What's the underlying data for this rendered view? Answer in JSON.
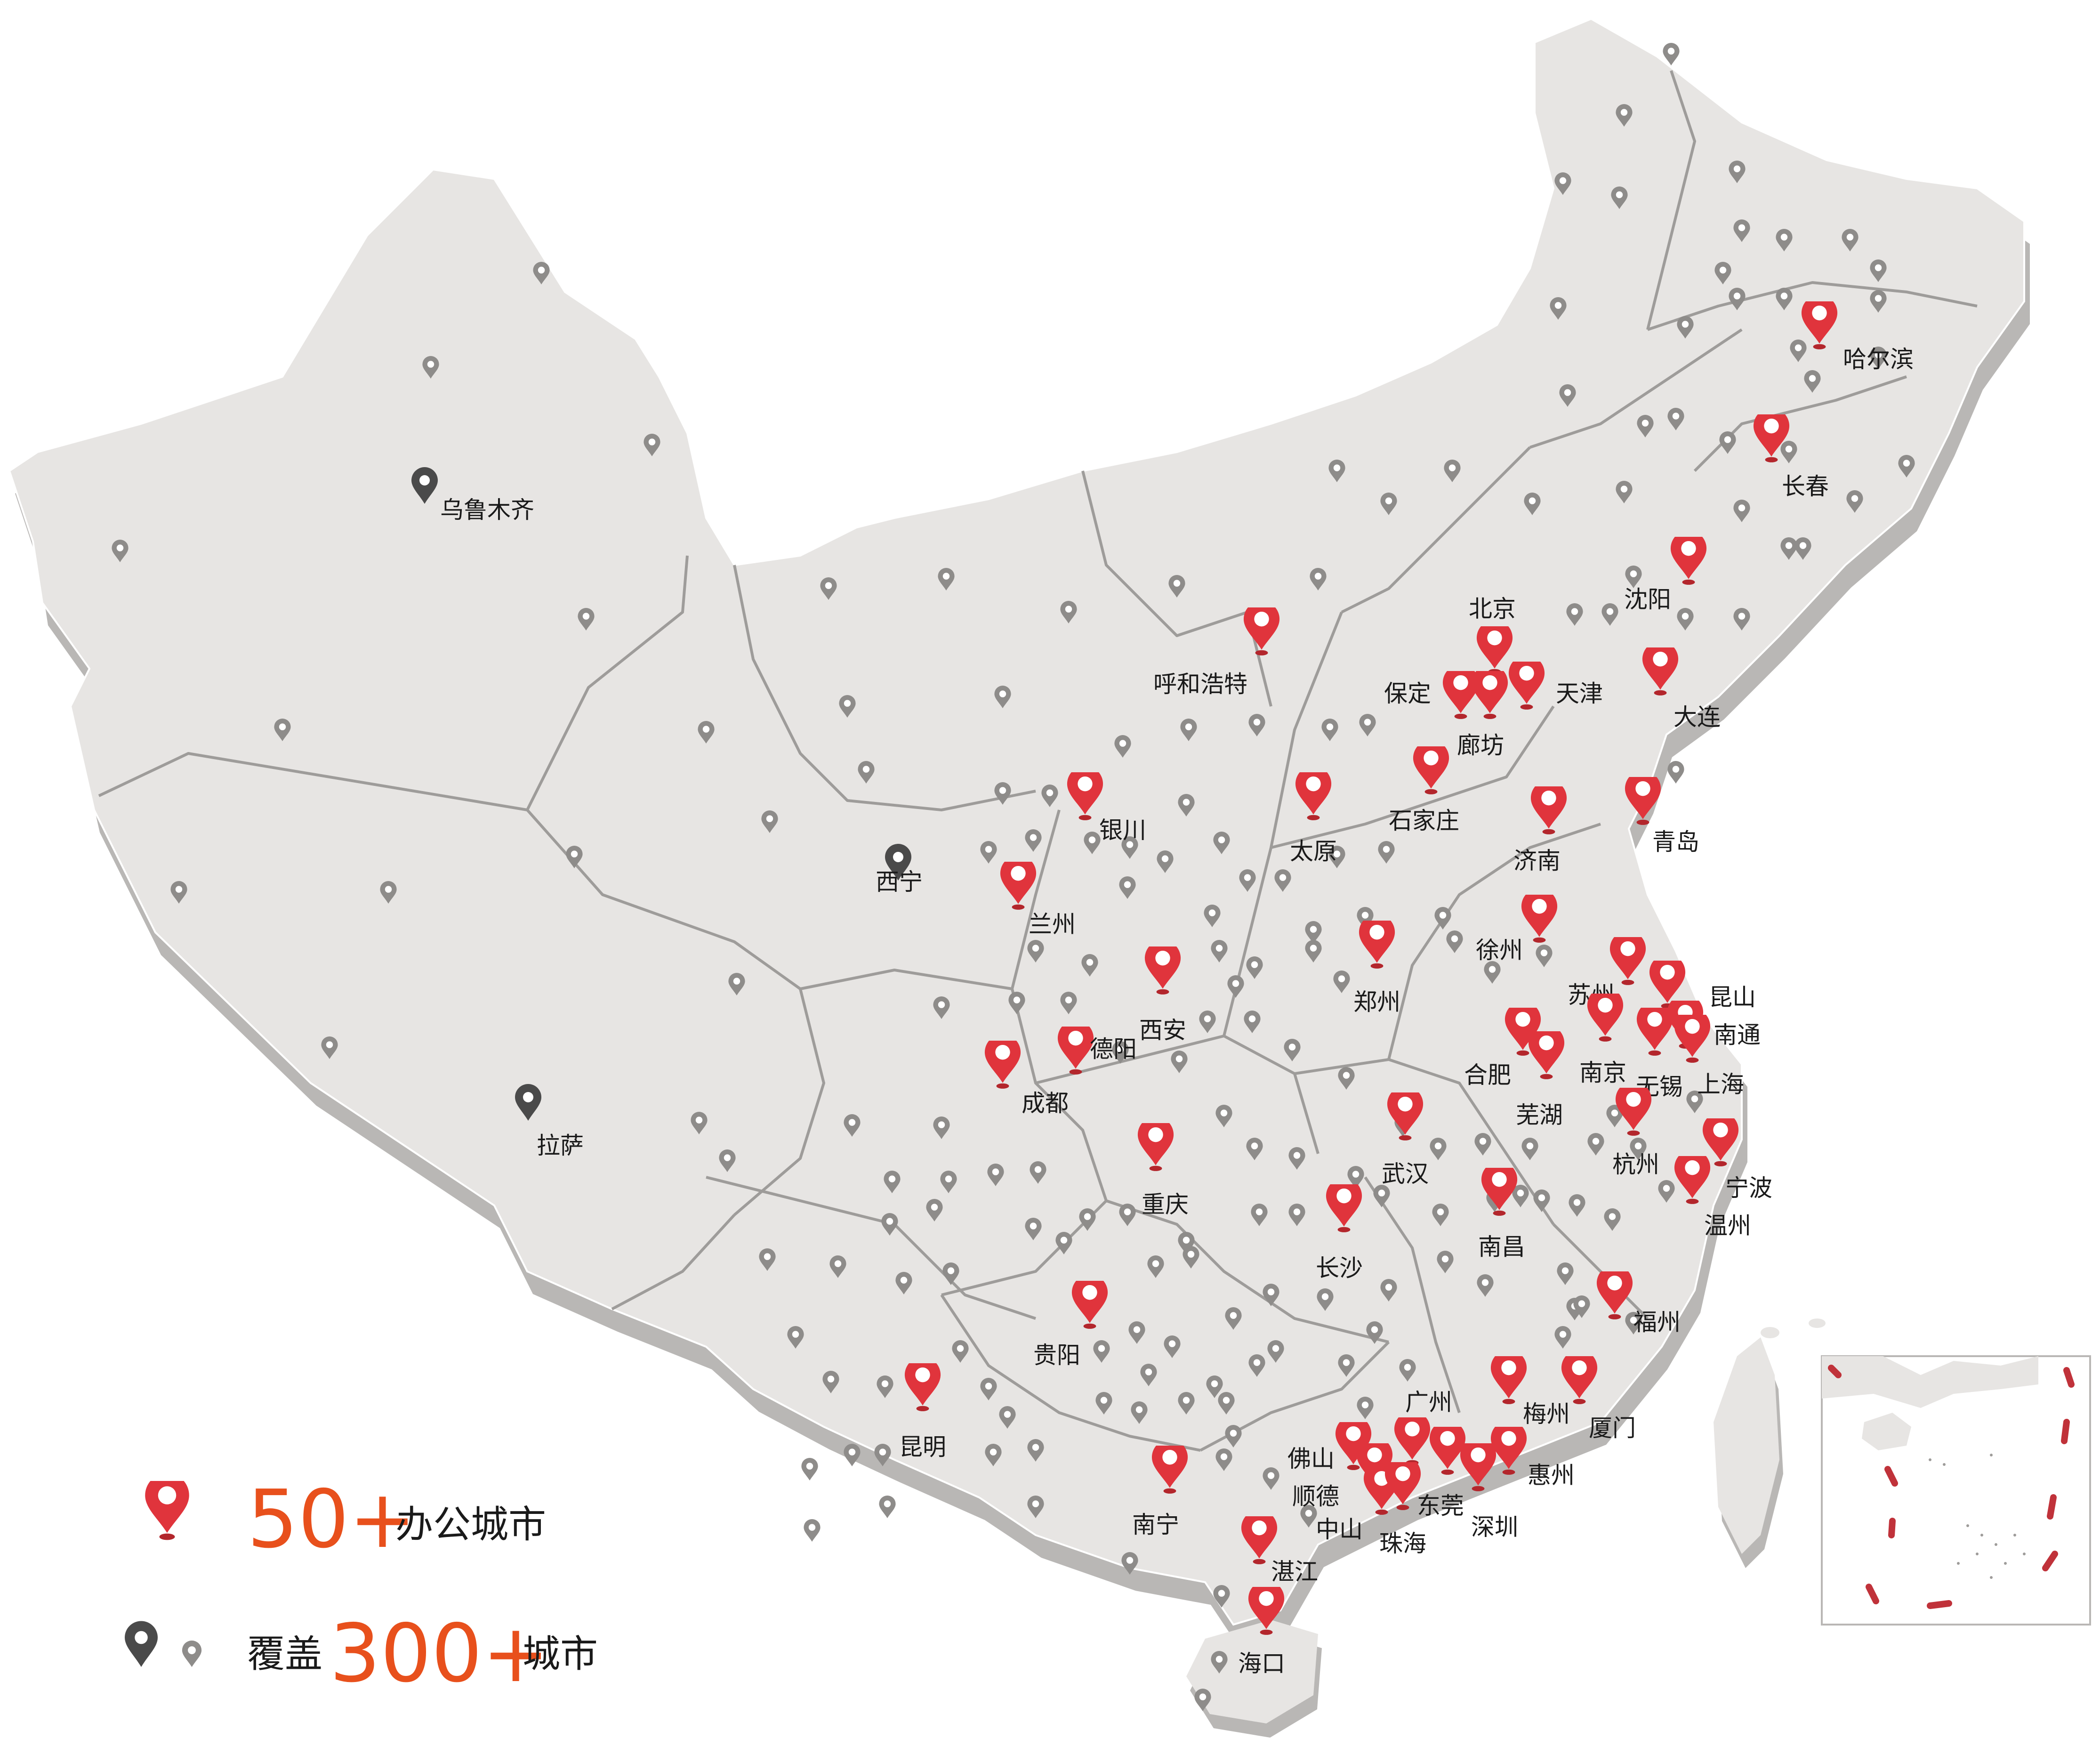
{
  "colors": {
    "land": "#e7e5e3",
    "shadow": "#b9b7b5",
    "border": "#9e9c9a",
    "office_pin": "#e0343c",
    "major_pin": "#4a4a4a",
    "minor_pin": "#8e8c8a",
    "accent": "#e8501c",
    "sea_boundary": "#c0323a"
  },
  "icons": {
    "office": "red-map-pin-icon",
    "major": "dark-map-pin-icon",
    "minor": "gray-map-pin-icon"
  },
  "legend": {
    "office_number": "50+",
    "office_text": "办公城市",
    "cover_prefix": "覆盖",
    "cover_number": "300+",
    "cover_text": "城市"
  },
  "office_cities": [
    "哈尔滨",
    "长春",
    "沈阳",
    "大连",
    "北京",
    "天津",
    "保定",
    "廊坊",
    "石家庄",
    "呼和浩特",
    "太原",
    "济南",
    "青岛",
    "银川",
    "兰州",
    "西安",
    "郑州",
    "徐州",
    "苏州",
    "昆山",
    "南通",
    "合肥",
    "南京",
    "无锡",
    "上海",
    "芜湖",
    "德阳",
    "成都",
    "武汉",
    "杭州",
    "宁波",
    "温州",
    "重庆",
    "南昌",
    "长沙",
    "福州",
    "贵阳",
    "昆明",
    "广州",
    "梅州",
    "厦门",
    "佛山",
    "顺德",
    "中山",
    "东莞",
    "惠州",
    "珠海",
    "深圳",
    "南宁",
    "湛江",
    "海口"
  ],
  "major_cities": [
    "乌鲁木齐",
    "西宁",
    "拉萨"
  ]
}
